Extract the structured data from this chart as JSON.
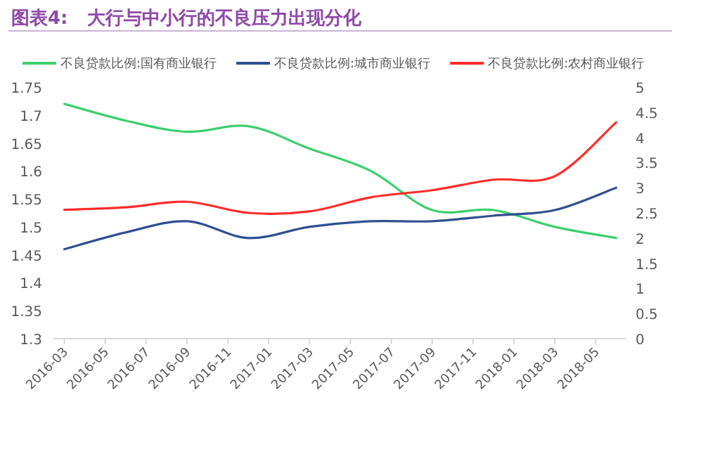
{
  "chart_data": {
    "type": "line",
    "title": "图表4:   大行与中小行的不良压力出现分化",
    "x": [
      "2016-03",
      "2016-06",
      "2016-09",
      "2016-12",
      "2017-03",
      "2017-06",
      "2017-09",
      "2017-12",
      "2018-03",
      "2018-06"
    ],
    "series": [
      {
        "name": "不良贷款比例:国有商业银行",
        "color": "#3ccf6e",
        "values": [
          1.72,
          1.69,
          1.67,
          1.68,
          1.64,
          1.6,
          1.53,
          1.53,
          1.5,
          1.48
        ]
      },
      {
        "name": "不良贷款比例:城市商业银行",
        "color": "#2f4f8f",
        "values": [
          1.46,
          1.49,
          1.51,
          1.48,
          1.5,
          1.51,
          1.51,
          1.52,
          1.53,
          1.57
        ]
      },
      {
        "name": "不良贷款比例:农村商业银行",
        "color": "#ff2b2b",
        "axis": "y2",
        "values": [
          2.56,
          2.61,
          2.72,
          2.5,
          2.53,
          2.81,
          2.95,
          3.16,
          3.23,
          4.3
        ]
      }
    ],
    "xlim": [
      "2016-02-15",
      "2018-06-15"
    ],
    "xticks": [
      "2016-03",
      "2016-05",
      "2016-07",
      "2016-09",
      "2016-11",
      "2017-01",
      "2017-03",
      "2017-05",
      "2017-07",
      "2017-09",
      "2017-11",
      "2018-01",
      "2018-03",
      "2018-05"
    ],
    "ylim": [
      1.3,
      1.75
    ],
    "yticks": [
      1.3,
      1.35,
      1.4,
      1.45,
      1.5,
      1.55,
      1.6,
      1.65,
      1.7,
      1.75
    ],
    "y2lim": [
      0,
      5
    ],
    "y2ticks": [
      0,
      0.5,
      1,
      1.5,
      2,
      2.5,
      3,
      3.5,
      4,
      4.5,
      5
    ],
    "legend": "top",
    "line_style": "solid",
    "marker": "none"
  }
}
